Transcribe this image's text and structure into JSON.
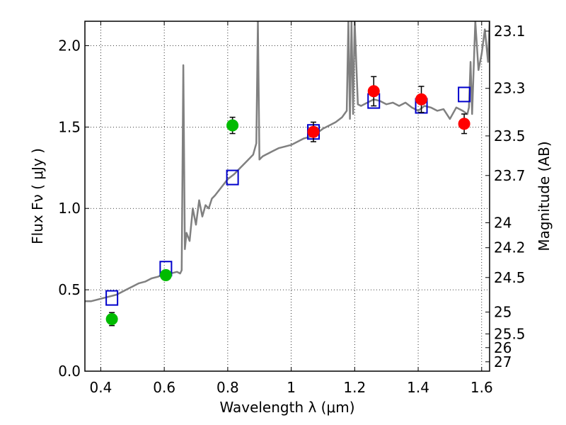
{
  "chart_data": {
    "type": "scatter",
    "xlabel": "Wavelength  λ (μm)",
    "ylabel": "Flux  Fν  ( μJy )",
    "y2label": "Magnitude (AB)",
    "xlim": [
      0.35,
      1.625
    ],
    "ylim": [
      0.0,
      2.15
    ],
    "grid": true,
    "x_ticks": [
      0.4,
      0.6,
      0.8,
      1.0,
      1.2,
      1.4,
      1.6
    ],
    "x_tick_labels": [
      "0.4",
      "0.6",
      "0.8",
      "1",
      "1.2",
      "1.4",
      "1.6"
    ],
    "y_ticks": [
      0.0,
      0.5,
      1.0,
      1.5,
      2.0
    ],
    "y_tick_labels": [
      "0.0",
      "0.5",
      "1.0",
      "1.5",
      "2.0"
    ],
    "y2_ticks": [
      23.1,
      23.3,
      23.5,
      23.7,
      24,
      24.2,
      24.5,
      25,
      25.5,
      26,
      27
    ],
    "y2_tick_labels": [
      "23.1",
      "23.3",
      "23.5",
      "23.7",
      "24",
      "24.2",
      "24.5",
      "25",
      "25.5",
      "26",
      "27"
    ],
    "colors": {
      "spectrum": "#808080",
      "green": "#00bb00",
      "red": "#ff0000",
      "model_box": "#0000cc",
      "error": "#000000"
    },
    "series": [
      {
        "kind": "line",
        "color": "#808080",
        "x": [
          0.35,
          0.37,
          0.39,
          0.41,
          0.43,
          0.45,
          0.47,
          0.49,
          0.5,
          0.52,
          0.54,
          0.56,
          0.58,
          0.6,
          0.62,
          0.64,
          0.65,
          0.655,
          0.66,
          0.665,
          0.67,
          0.68,
          0.69,
          0.7,
          0.71,
          0.72,
          0.73,
          0.74,
          0.75,
          0.76,
          0.78,
          0.8,
          0.82,
          0.84,
          0.86,
          0.88,
          0.89,
          0.895,
          0.9,
          0.91,
          0.92,
          0.94,
          0.96,
          0.98,
          1.0,
          1.02,
          1.04,
          1.06,
          1.08,
          1.1,
          1.12,
          1.14,
          1.16,
          1.175,
          1.18,
          1.185,
          1.19,
          1.195,
          1.2,
          1.21,
          1.22,
          1.24,
          1.26,
          1.28,
          1.3,
          1.32,
          1.34,
          1.36,
          1.38,
          1.4,
          1.42,
          1.44,
          1.46,
          1.48,
          1.5,
          1.52,
          1.54,
          1.555,
          1.56,
          1.565,
          1.57,
          1.58,
          1.59,
          1.6,
          1.61,
          1.62,
          1.625
        ],
        "y": [
          0.43,
          0.43,
          0.44,
          0.45,
          0.46,
          0.47,
          0.49,
          0.51,
          0.52,
          0.54,
          0.55,
          0.57,
          0.58,
          0.6,
          0.6,
          0.61,
          0.6,
          0.62,
          1.88,
          0.75,
          0.85,
          0.8,
          1.0,
          0.9,
          1.05,
          0.95,
          1.02,
          1.0,
          1.06,
          1.08,
          1.13,
          1.18,
          1.21,
          1.25,
          1.29,
          1.33,
          1.4,
          2.15,
          1.3,
          1.32,
          1.33,
          1.35,
          1.37,
          1.38,
          1.39,
          1.41,
          1.43,
          1.44,
          1.46,
          1.49,
          1.51,
          1.53,
          1.56,
          1.6,
          2.15,
          1.55,
          2.15,
          1.58,
          2.15,
          1.64,
          1.63,
          1.65,
          1.67,
          1.66,
          1.64,
          1.65,
          1.63,
          1.65,
          1.62,
          1.6,
          1.63,
          1.62,
          1.6,
          1.61,
          1.55,
          1.62,
          1.6,
          1.58,
          1.62,
          1.9,
          1.58,
          2.15,
          1.85,
          1.95,
          2.1,
          1.9,
          2.15
        ]
      },
      {
        "kind": "points",
        "color": "#00bb00",
        "x": [
          0.435,
          0.605,
          0.815
        ],
        "y": [
          0.32,
          0.59,
          1.51
        ],
        "err": [
          0.04,
          0.02,
          0.05
        ]
      },
      {
        "kind": "points",
        "color": "#ff0000",
        "x": [
          1.07,
          1.26,
          1.41,
          1.545
        ],
        "y": [
          1.47,
          1.72,
          1.67,
          1.52
        ],
        "err": [
          0.06,
          0.09,
          0.08,
          0.06
        ]
      },
      {
        "kind": "boxes",
        "color": "#0000cc",
        "x": [
          0.435,
          0.605,
          0.815,
          1.07,
          1.26,
          1.41,
          1.545
        ],
        "y": [
          0.45,
          0.63,
          1.19,
          1.47,
          1.66,
          1.63,
          1.7
        ]
      }
    ]
  }
}
